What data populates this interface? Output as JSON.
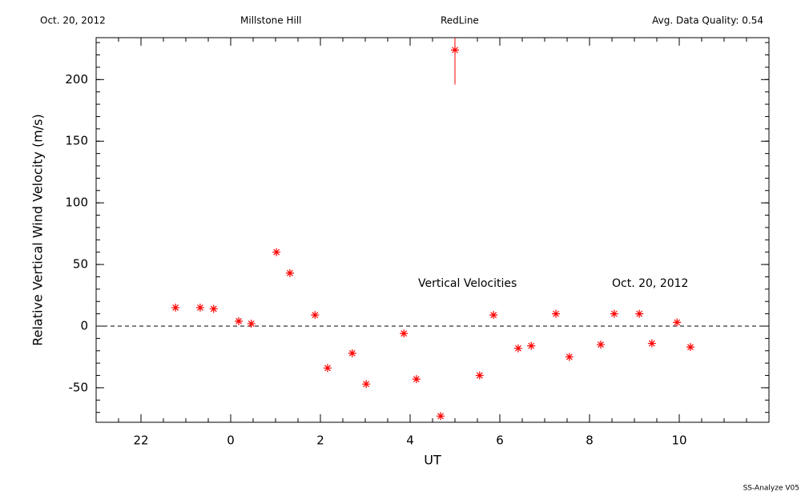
{
  "chart_data": {
    "type": "scatter",
    "header": [
      "Oct. 20, 2012",
      "Millstone Hill",
      "RedLine",
      "Avg. Data Quality: 0.54"
    ],
    "footer": "SS-Analyze V05",
    "xlabel": "UT",
    "ylabel": "Relative Vertical Wind Velocity (m/s)",
    "annotations": [
      "Vertical Velocities",
      "Oct. 20, 2012"
    ],
    "xlim": [
      21,
      36
    ],
    "xticks": [
      22,
      {
        "value": 24,
        "label": "0"
      },
      {
        "value": 26,
        "label": "2"
      },
      {
        "value": 28,
        "label": "4"
      },
      {
        "value": 30,
        "label": "6"
      },
      {
        "value": 32,
        "label": "8"
      },
      {
        "value": 34,
        "label": "10"
      }
    ],
    "xminor": 0.5,
    "ylim": [
      -78,
      234
    ],
    "yticks": [
      -50,
      0,
      50,
      100,
      150,
      200
    ],
    "yminor": 10,
    "hline": 0,
    "color": "#ff0000",
    "x": [
      22.77,
      23.32,
      23.62,
      24.18,
      24.46,
      25.02,
      25.32,
      25.88,
      26.16,
      26.71,
      27.02,
      27.86,
      28.14,
      28.68,
      29.0,
      29.55,
      29.86,
      30.41,
      30.7,
      31.25,
      31.55,
      32.25,
      32.55,
      33.11,
      33.39,
      33.95,
      34.25
    ],
    "values": [
      15,
      15,
      14,
      4,
      2,
      60,
      43,
      9,
      -34,
      -22,
      -47,
      -6,
      -43,
      -73,
      224,
      -40,
      9,
      -18,
      -16,
      10,
      -25,
      -15,
      10,
      10,
      -14,
      3,
      -17
    ],
    "errors": [
      null,
      null,
      null,
      null,
      null,
      null,
      null,
      null,
      null,
      null,
      null,
      null,
      null,
      null,
      28,
      null,
      null,
      null,
      null,
      null,
      null,
      null,
      null,
      null,
      null,
      null,
      null
    ]
  }
}
